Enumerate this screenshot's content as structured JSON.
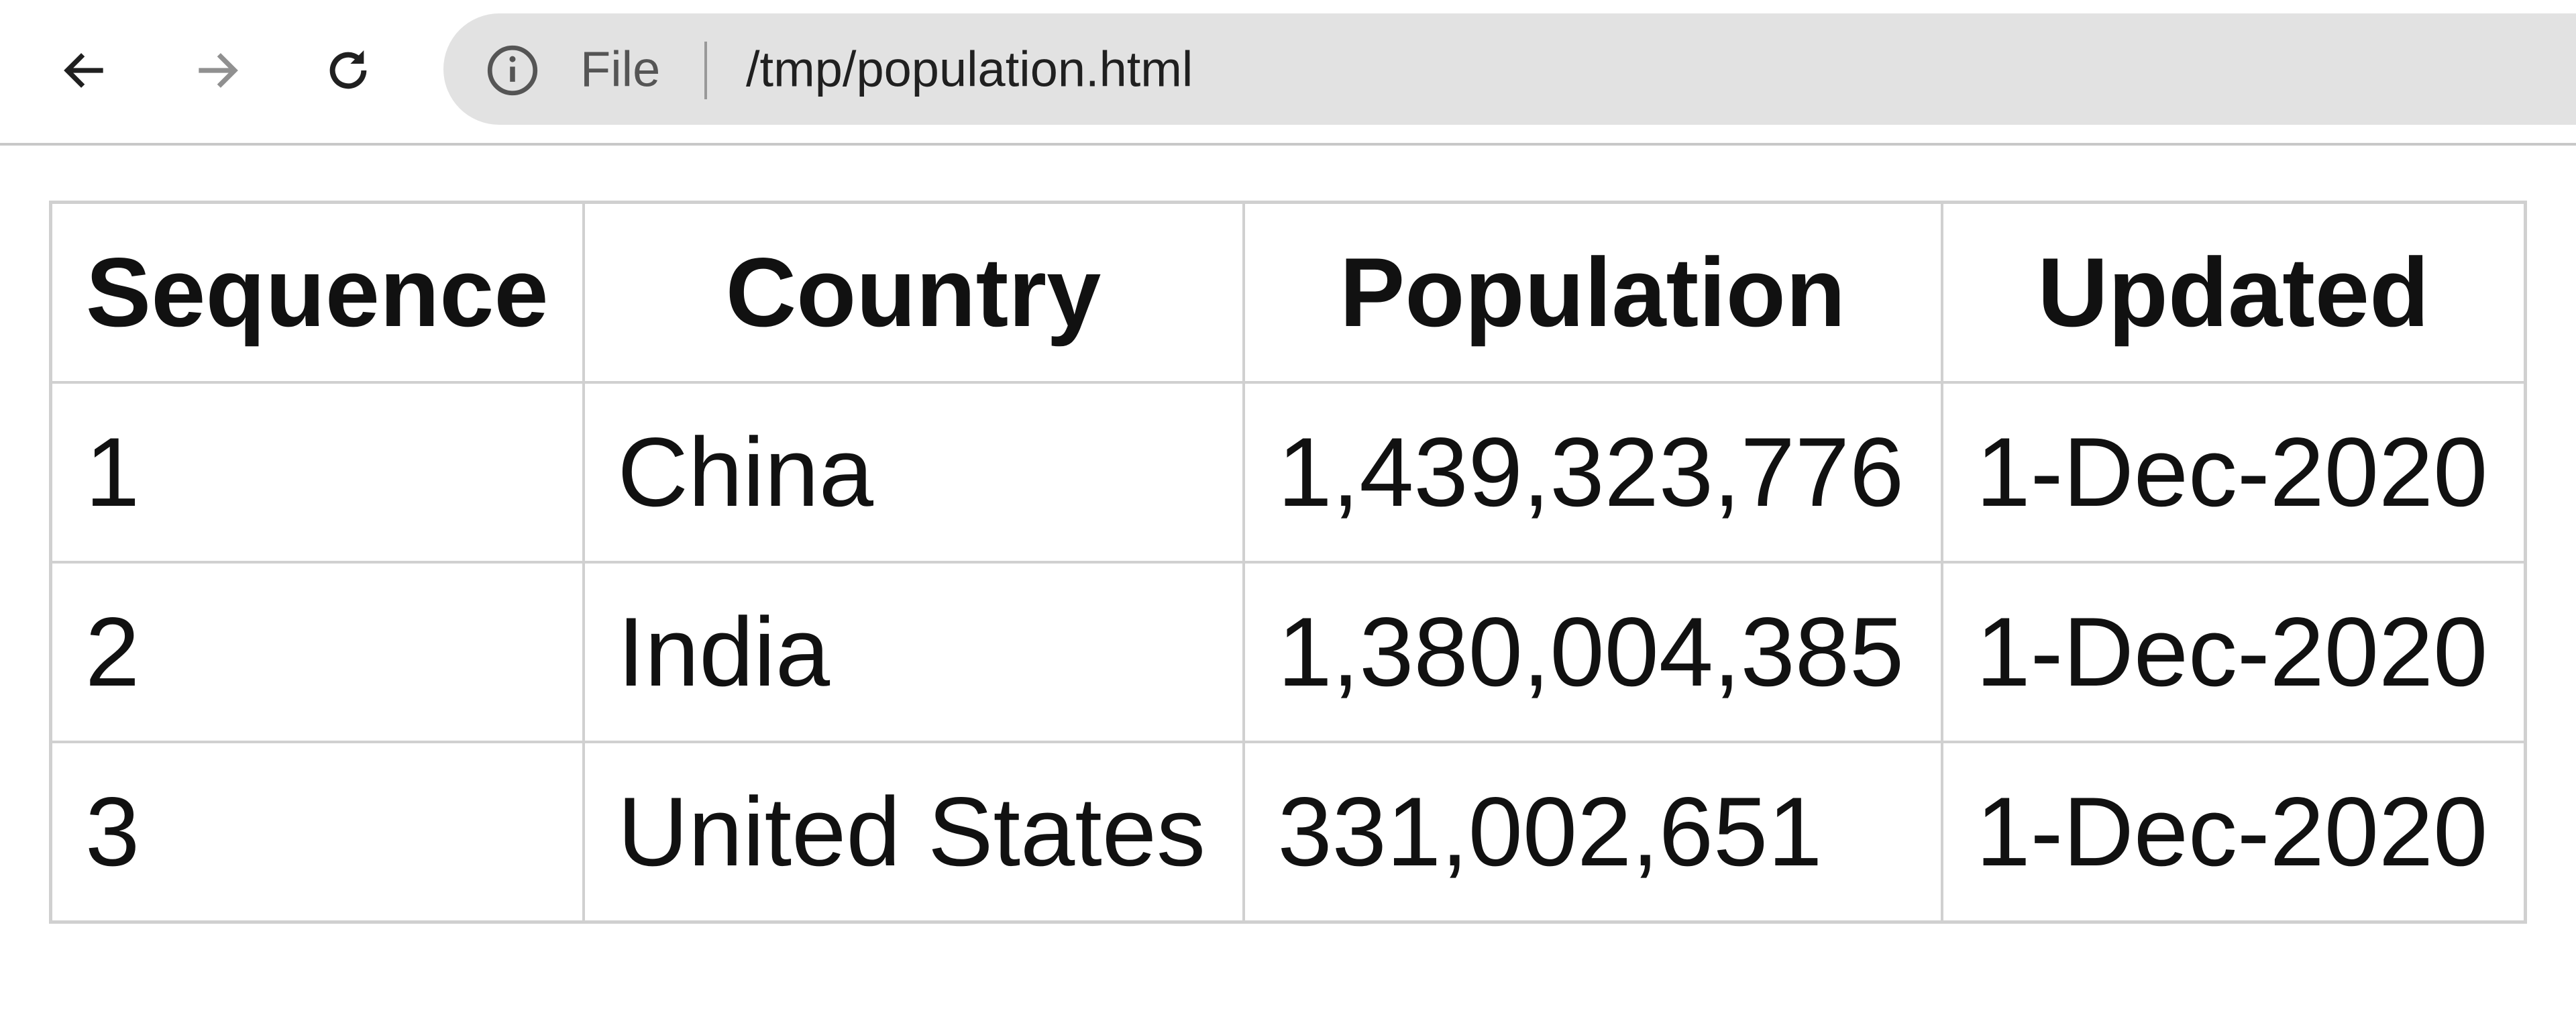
{
  "browser": {
    "scheme_label": "File",
    "url": "/tmp/population.html"
  },
  "table": {
    "header": [
      "Sequence",
      "Country",
      "Population",
      "Updated"
    ],
    "rows": [
      [
        "1",
        "China",
        "1,439,323,776",
        "1-Dec-2020"
      ],
      [
        "2",
        "India",
        "1,380,004,385",
        "1-Dec-2020"
      ],
      [
        "3",
        "United States",
        "331,002,651",
        "1-Dec-2020"
      ]
    ]
  }
}
